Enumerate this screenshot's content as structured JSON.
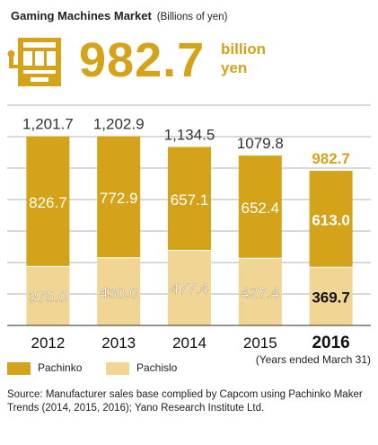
{
  "header": {
    "title": "Gaming Machines Market",
    "unit_note": "(Billions of yen)"
  },
  "headline": {
    "value": "982.7",
    "unit": "billion yen",
    "icon": "slot-machine-icon"
  },
  "chart_data": {
    "type": "bar",
    "stacked": true,
    "categories": [
      "2012",
      "2013",
      "2014",
      "2015",
      "2016"
    ],
    "totals": [
      "1,201.7",
      "1,202.9",
      "1,134.5",
      "1079.8",
      "982.7"
    ],
    "series": [
      {
        "name": "Pachislo",
        "values": [
          375.0,
          430.0,
          477.4,
          427.4,
          369.7
        ],
        "labels": [
          "375.0",
          "430.0",
          "477.4",
          "427.4",
          "369.7"
        ],
        "color": "#f1d595"
      },
      {
        "name": "Pachinko",
        "values": [
          826.7,
          772.9,
          657.1,
          652.4,
          613.0
        ],
        "labels": [
          "826.7",
          "772.9",
          "657.1",
          "652.4",
          "613.0"
        ],
        "color": "#d4a31a"
      }
    ],
    "highlight_category": "2016",
    "ylim": [
      0,
      1400
    ],
    "grid": true,
    "legend": "bottom-left"
  },
  "period_note": "(Years ended March 31)",
  "source": "Source: Manufacturer sales base complied by Capcom using Pachinko Maker Trends (2014, 2015, 2016); Yano Research Institute Ltd.",
  "colors": {
    "accent": "#d4a31a",
    "light": "#f1d595",
    "axis": "#555555",
    "grid": "#9a9a9a"
  }
}
